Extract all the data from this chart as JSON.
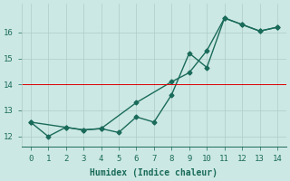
{
  "xlabel": "Humidex (Indice chaleur)",
  "ylabel": "",
  "bg_color": "#cce8e4",
  "grid_color": "#b0ccc8",
  "line_color": "#1a6b5a",
  "redline_color": "#dd0000",
  "redline_y": 14.0,
  "xlim": [
    -0.5,
    14.5
  ],
  "ylim": [
    11.6,
    17.1
  ],
  "xticks": [
    0,
    1,
    2,
    3,
    4,
    5,
    6,
    7,
    8,
    9,
    10,
    11,
    12,
    13,
    14
  ],
  "yticks": [
    12,
    13,
    14,
    15,
    16
  ],
  "series1_x": [
    0,
    1,
    2,
    3,
    4,
    5,
    6,
    7,
    8,
    9,
    10,
    11,
    12,
    13,
    14
  ],
  "series1_y": [
    12.55,
    12.0,
    12.35,
    12.25,
    12.3,
    12.15,
    12.75,
    12.55,
    13.6,
    15.2,
    14.65,
    16.55,
    16.3,
    16.05,
    16.2
  ],
  "series2_x": [
    0,
    2,
    3,
    4,
    6,
    8,
    9,
    10,
    11,
    12,
    13,
    14
  ],
  "series2_y": [
    12.55,
    12.35,
    12.25,
    12.3,
    13.3,
    14.1,
    14.45,
    15.3,
    16.55,
    16.3,
    16.05,
    16.2
  ],
  "marker": "D",
  "markersize": 2.5,
  "linewidth": 1.0,
  "font_family": "monospace",
  "xlabel_fontsize": 7,
  "tick_fontsize": 6.5
}
